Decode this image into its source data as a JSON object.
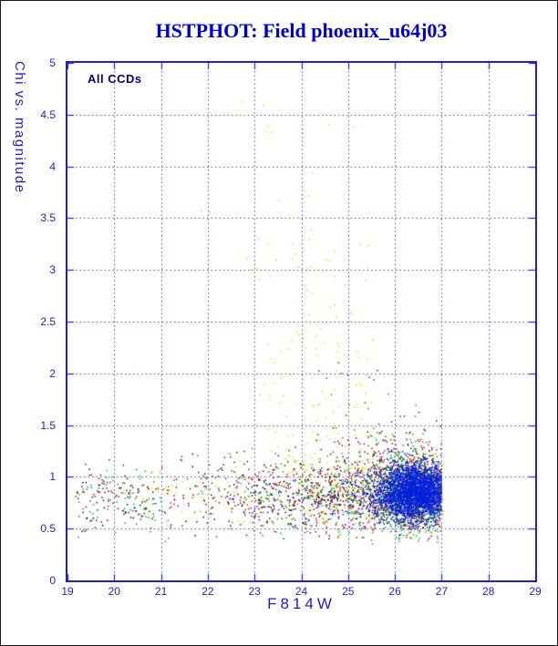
{
  "chart_data": {
    "type": "scatter",
    "title": "HSTPHOT: Field phoenix_u64j03",
    "xlabel": "F814W",
    "ylabel": "Chi vs. magnitude",
    "annotation": "All CCDs",
    "xlim": [
      19,
      29
    ],
    "ylim": [
      0,
      5
    ],
    "x_ticks": [
      19,
      20,
      21,
      22,
      23,
      24,
      25,
      26,
      27,
      28,
      29
    ],
    "y_ticks": [
      0,
      0.5,
      1,
      1.5,
      2,
      2.5,
      3,
      3.5,
      4,
      4.5,
      5
    ],
    "grid": true,
    "grid_style": "dashed",
    "legend": "none",
    "seed": 1234567,
    "point_size": 1.5,
    "style": {
      "title_color": "#0000cc",
      "axis_color": "#2222bb",
      "grid_color": "#3a3acc",
      "tick_label_color": "#2222bb",
      "axis_title_color": "#2222bb",
      "annotation_color": "#000080",
      "background": "#ffffff"
    },
    "series": [
      {
        "name": "ccd-yellow",
        "color": "#ead900",
        "clusters": [
          {
            "shape": "band",
            "n": 420,
            "xr": [
              22.6,
              27.0
            ],
            "xpow": 2.0,
            "y": [
              0.85,
              0.17
            ],
            "clip": [
              19,
              27.02,
              0.4,
              1.45
            ]
          },
          {
            "shape": "band",
            "n": 60,
            "xr": [
              20.6,
              23.0
            ],
            "xpow": 1,
            "y": [
              0.82,
              0.15
            ]
          },
          {
            "shape": "spray",
            "n": 150,
            "xr": [
              23.1,
              25.6
            ],
            "yr": [
              1.05,
              3.3
            ],
            "ypow": 2.0
          },
          {
            "shape": "spray",
            "n": 26,
            "xr": [
              22.8,
              25.4
            ],
            "yr": [
              2.9,
              4.45
            ],
            "ypow": 1.4
          },
          {
            "shape": "gauss",
            "n": 5,
            "x": [
              23.6,
              0.45
            ],
            "y": [
              4.6,
              0.22
            ]
          },
          {
            "shape": "gauss",
            "n": 2,
            "x": [
              21.95,
              0.1
            ],
            "y": [
              3.66,
              0.05
            ]
          }
        ]
      },
      {
        "name": "ccd-red",
        "color": "#d40000",
        "clusters": [
          {
            "shape": "band",
            "n": 420,
            "xr": [
              21.3,
              27.0
            ],
            "xpow": 2.2,
            "y": [
              0.85,
              0.18
            ],
            "clip": [
              19,
              27.02,
              0.4,
              1.5
            ]
          },
          {
            "shape": "gauss",
            "n": 330,
            "x": [
              26.25,
              0.5
            ],
            "y": [
              0.9,
              0.24
            ],
            "clip": [
              24.6,
              27.02,
              0.45,
              1.65
            ]
          },
          {
            "shape": "band",
            "n": 55,
            "xr": [
              19.1,
              21.5
            ],
            "xpow": 1,
            "y": [
              0.8,
              0.16
            ]
          },
          {
            "shape": "spray",
            "n": 22,
            "xr": [
              24.2,
              26.4
            ],
            "yr": [
              1.3,
              2.15
            ],
            "ypow": 1.6
          }
        ]
      },
      {
        "name": "ccd-green",
        "color": "#00b000",
        "clusters": [
          {
            "shape": "band",
            "n": 480,
            "xr": [
              21.0,
              27.0
            ],
            "xpow": 2.3,
            "y": [
              0.82,
              0.2
            ],
            "clip": [
              19,
              27.02,
              0.35,
              1.55
            ]
          },
          {
            "shape": "gauss",
            "n": 430,
            "x": [
              26.35,
              0.45
            ],
            "y": [
              0.85,
              0.24
            ],
            "clip": [
              24.8,
              27.02,
              0.4,
              1.7
            ]
          },
          {
            "shape": "band",
            "n": 90,
            "xr": [
              19.2,
              21.2
            ],
            "xpow": 1,
            "y": [
              0.8,
              0.18
            ]
          },
          {
            "shape": "spray",
            "n": 14,
            "xr": [
              24.6,
              26.9
            ],
            "yr": [
              1.35,
              1.85
            ],
            "ypow": 1.4
          }
        ]
      },
      {
        "name": "ccd-maroon",
        "color": "#7c0010",
        "clusters": [
          {
            "shape": "band",
            "n": 330,
            "xr": [
              20.8,
              27.0
            ],
            "xpow": 2.0,
            "y": [
              0.85,
              0.2
            ],
            "clip": [
              19,
              27.02,
              0.4,
              1.5
            ]
          },
          {
            "shape": "band",
            "n": 45,
            "xr": [
              19.2,
              20.9
            ],
            "xpow": 1,
            "y": [
              0.84,
              0.16
            ]
          },
          {
            "shape": "spray",
            "n": 14,
            "xr": [
              25.0,
              26.9
            ],
            "yr": [
              1.25,
              1.65
            ],
            "ypow": 1.3
          }
        ]
      },
      {
        "name": "ccd-navy",
        "color": "#000070",
        "clusters": [
          {
            "shape": "band",
            "n": 280,
            "xr": [
              20.4,
              27.0
            ],
            "xpow": 2.2,
            "y": [
              0.8,
              0.17
            ],
            "clip": [
              19,
              27.02,
              0.4,
              1.4
            ]
          },
          {
            "shape": "band",
            "n": 30,
            "xr": [
              19.2,
              20.6
            ],
            "xpow": 1,
            "y": [
              0.8,
              0.14
            ]
          }
        ]
      },
      {
        "name": "ccd-blue-core",
        "color": "#0022dd",
        "clusters": [
          {
            "shape": "gauss",
            "n": 2600,
            "x": [
              26.45,
              0.38
            ],
            "y": [
              0.85,
              0.13
            ],
            "clip": [
              25.2,
              27.0,
              0.5,
              1.3
            ]
          },
          {
            "shape": "gauss",
            "n": 500,
            "x": [
              26.15,
              0.6
            ],
            "y": [
              0.85,
              0.19
            ],
            "clip": [
              24.6,
              27.0,
              0.45,
              1.4
            ]
          },
          {
            "shape": "band",
            "n": 110,
            "xr": [
              22.4,
              25.6
            ],
            "xpow": 1.3,
            "y": [
              0.8,
              0.15
            ]
          }
        ]
      }
    ]
  }
}
